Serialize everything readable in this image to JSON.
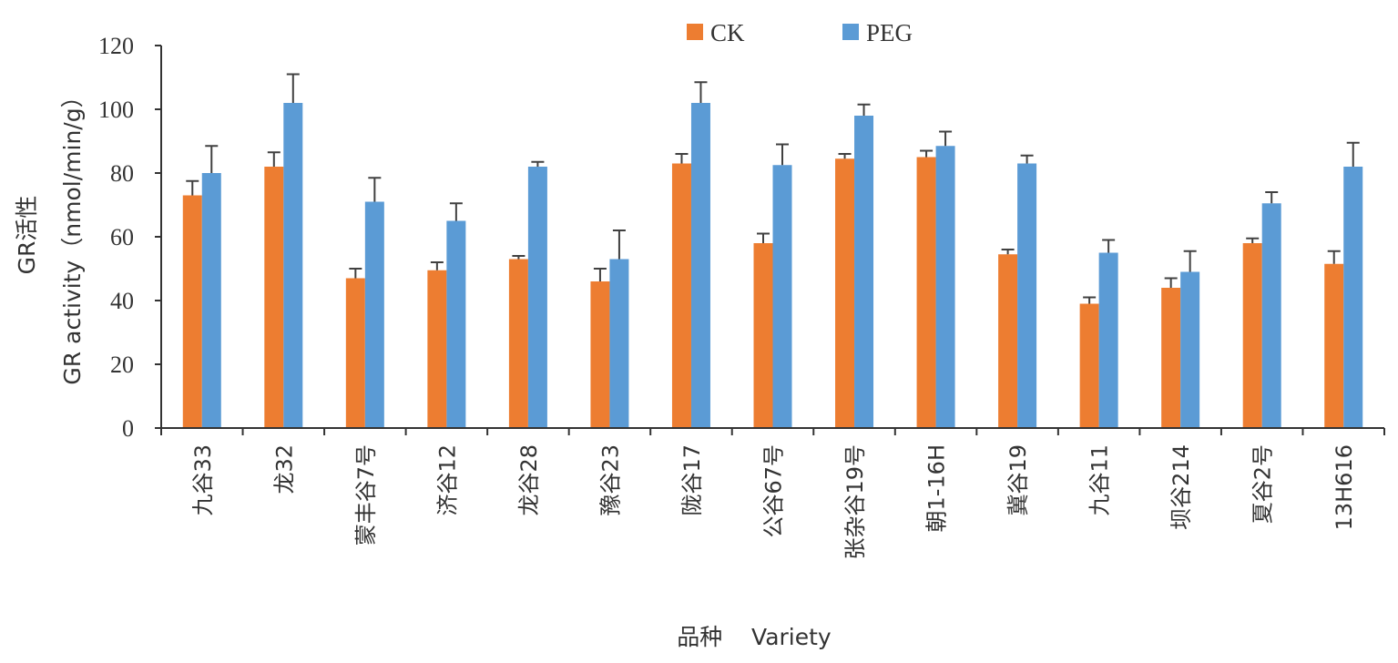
{
  "chart_data": {
    "type": "bar",
    "title": "",
    "xlabel": "品种    Variety",
    "ylabel_lines": [
      "GR活性",
      "GR activity（nmol/min/g）"
    ],
    "ylim": [
      0,
      120
    ],
    "yticks": [
      0,
      20,
      40,
      60,
      80,
      100,
      120
    ],
    "grid": false,
    "legend_position": "top-center",
    "categories": [
      "九谷33",
      "龙32",
      "蒙丰谷7号",
      "济谷12",
      "龙谷28",
      "豫谷23",
      "陇谷17",
      "公谷67号",
      "张杂谷19号",
      "朝1-16H",
      "冀谷19",
      "九谷11",
      "坝谷214",
      "夏谷2号",
      "13H616"
    ],
    "series": [
      {
        "name": "CK",
        "color": "#ed7d31",
        "values": [
          73,
          82,
          47,
          49.5,
          53,
          46,
          83,
          58,
          84.5,
          85,
          54.5,
          39,
          44,
          58,
          51.5
        ],
        "errors": [
          4.5,
          4.5,
          3,
          2.5,
          1,
          4,
          3,
          3,
          1.5,
          2,
          1.5,
          2,
          3,
          1.5,
          4
        ]
      },
      {
        "name": "PEG",
        "color": "#5b9bd5",
        "values": [
          80,
          102,
          71,
          65,
          82,
          53,
          102,
          82.5,
          98,
          88.5,
          83,
          55,
          49,
          70.5,
          82
        ],
        "errors": [
          8.5,
          9,
          7.5,
          5.5,
          1.5,
          9,
          6.5,
          6.5,
          3.5,
          4.5,
          2.5,
          4,
          6.5,
          3.5,
          7.5
        ]
      }
    ]
  }
}
